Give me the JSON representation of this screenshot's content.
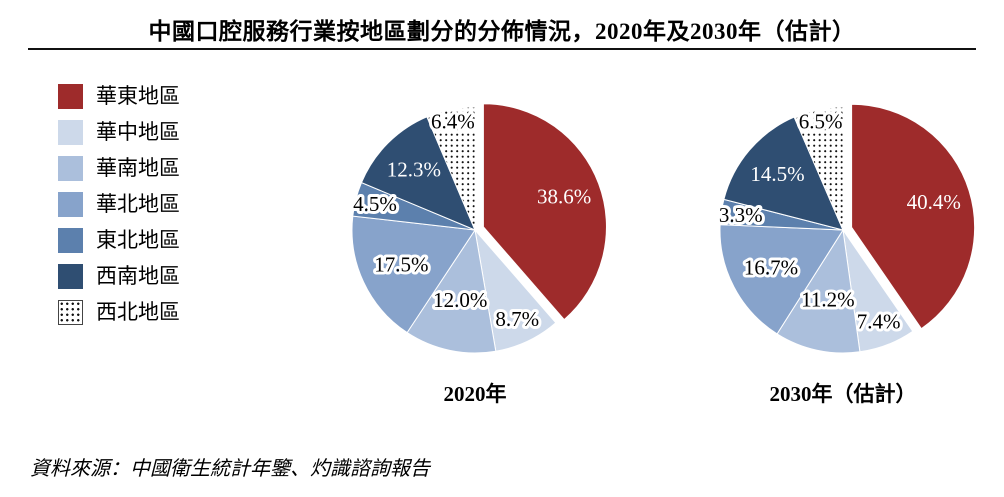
{
  "title": "中國口腔服務行業按地區劃分的分佈情況，2020年及2030年（估計）",
  "source": "資料來源：中國衛生統計年鑒、灼識諮詢報告",
  "chart_data": {
    "type": "pie",
    "categories": [
      "華東地區",
      "華中地區",
      "華南地區",
      "華北地區",
      "東北地區",
      "西南地區",
      "西北地區"
    ],
    "series": [
      {
        "name": "2020年",
        "values": [
          38.6,
          8.7,
          12.0,
          17.5,
          4.5,
          12.3,
          6.4
        ]
      },
      {
        "name": "2030年（估計）",
        "values": [
          40.4,
          7.4,
          11.2,
          16.7,
          3.3,
          14.5,
          6.5
        ]
      }
    ],
    "colors": [
      "#9E2B2B",
      "#CDD9EA",
      "#ABBFDC",
      "#87A3CB",
      "#5C80AD",
      "#2F4E72",
      "#FFFFFF"
    ],
    "pattern_index": 6,
    "exploded_index": 0,
    "legend_position": "left",
    "label_format": "percent_one_decimal",
    "start_angle_deg": 0,
    "direction": "clockwise"
  }
}
